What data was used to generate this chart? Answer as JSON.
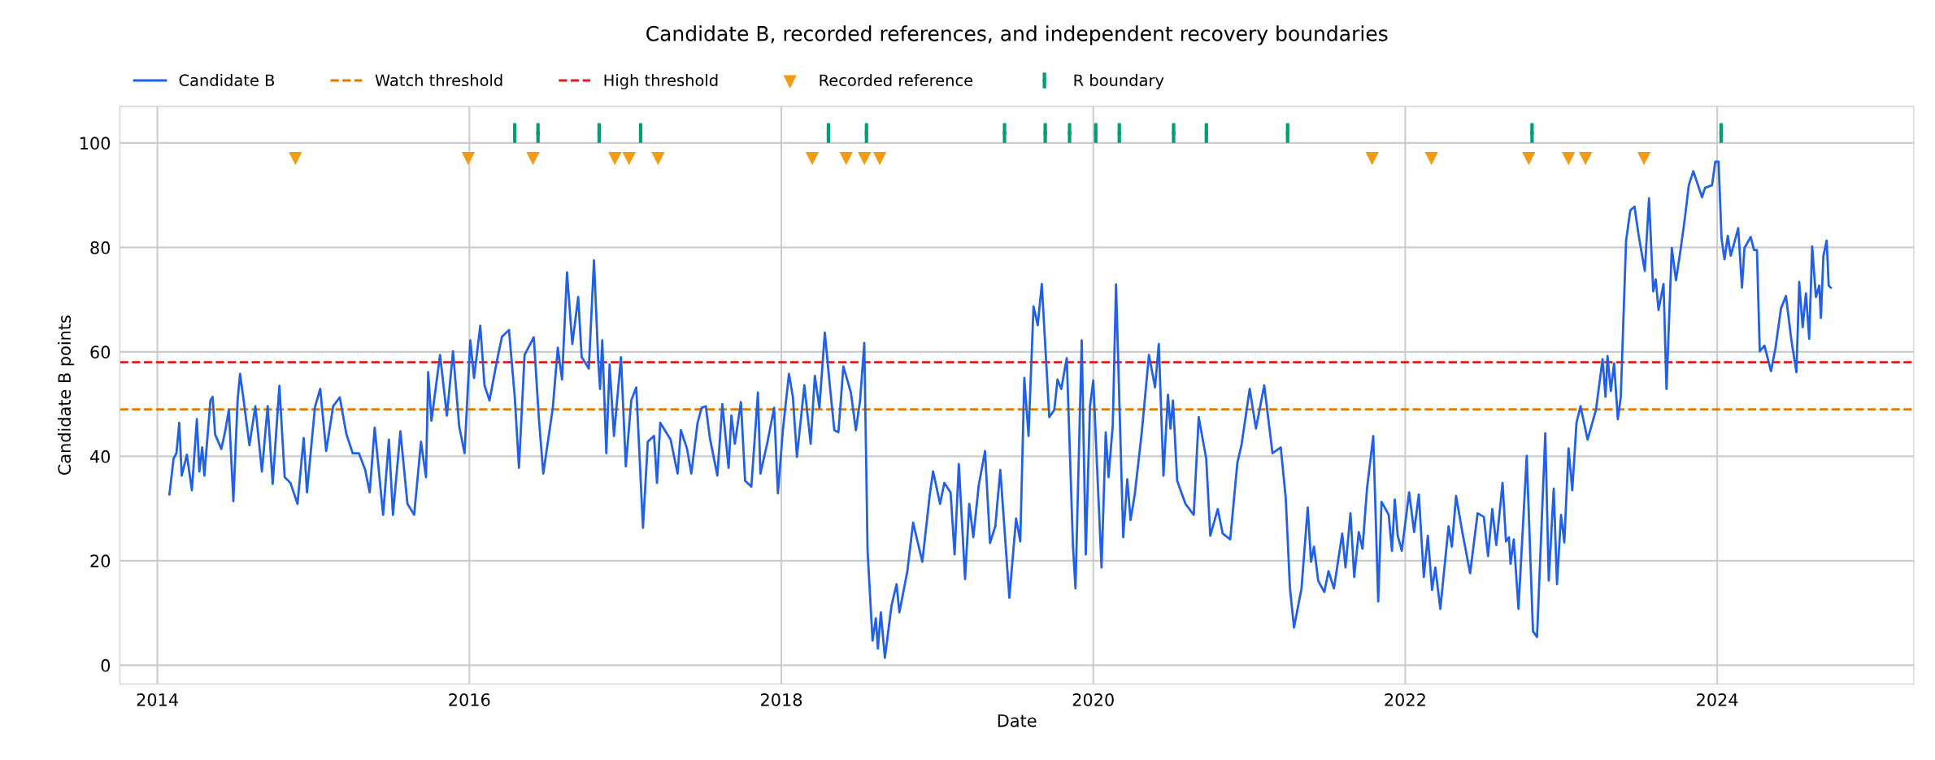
{
  "chart_data": {
    "type": "line",
    "title": "Candidate B, recorded references, and independent recovery boundaries",
    "xlabel": "Date",
    "ylabel": "Candidate B points",
    "xlim": [
      2013.76,
      2025.26
    ],
    "xticks": [
      2014,
      2016,
      2018,
      2020,
      2022,
      2024
    ],
    "ylim": [
      -3.6,
      107
    ],
    "yticks": [
      0,
      20,
      40,
      60,
      80,
      100
    ],
    "grid": true,
    "legend": "top",
    "ref_lines": [
      {
        "axis": "y",
        "value": 49,
        "label": "Watch threshold",
        "color": "#e07b00",
        "line_style": "dashed"
      },
      {
        "axis": "y",
        "value": 58,
        "label": "High threshold",
        "color": "#e31a1c",
        "line_style": "dashed"
      }
    ],
    "series": [
      {
        "name": "Candidate B",
        "color": "#2160e8",
        "marker": "none",
        "line_style": "solid",
        "x": [
          2014.077,
          2014.088,
          2014.104,
          2014.122,
          2014.14,
          2014.156,
          2014.189,
          2014.221,
          2014.253,
          2014.269,
          2014.287,
          2014.301,
          2014.34,
          2014.354,
          2014.37,
          2014.41,
          2014.436,
          2014.458,
          2014.487,
          2014.514,
          2014.53,
          2014.553,
          2014.59,
          2014.628,
          2014.67,
          2014.707,
          2014.739,
          2014.782,
          2014.816,
          2014.853,
          2014.898,
          2014.938,
          2014.959,
          2015.01,
          2015.044,
          2015.082,
          2015.127,
          2015.169,
          2015.212,
          2015.252,
          2015.292,
          2015.332,
          2015.361,
          2015.393,
          2015.447,
          2015.484,
          2015.51,
          2015.558,
          2015.603,
          2015.646,
          2015.69,
          2015.722,
          2015.736,
          2015.757,
          2015.812,
          2015.856,
          2015.895,
          2015.935,
          2015.969,
          2016.006,
          2016.03,
          2016.07,
          2016.097,
          2016.129,
          2016.179,
          2016.209,
          2016.254,
          2016.291,
          2016.318,
          2016.354,
          2016.413,
          2016.446,
          2016.474,
          2016.535,
          2016.567,
          2016.594,
          2016.626,
          2016.66,
          2016.698,
          2016.72,
          2016.766,
          2016.799,
          2016.827,
          2016.838,
          2016.852,
          2016.878,
          2016.899,
          2016.927,
          2016.972,
          2017.003,
          2017.038,
          2017.07,
          2017.113,
          2017.144,
          2017.184,
          2017.203,
          2017.224,
          2017.29,
          2017.335,
          2017.356,
          2017.396,
          2017.423,
          2017.463,
          2017.489,
          2017.516,
          2017.542,
          2017.59,
          2017.622,
          2017.662,
          2017.68,
          2017.702,
          2017.741,
          2017.768,
          2017.808,
          2017.85,
          2017.866,
          2017.909,
          2017.954,
          2017.978,
          2018.01,
          2018.049,
          2018.074,
          2018.1,
          2018.148,
          2018.188,
          2018.215,
          2018.244,
          2018.279,
          2018.313,
          2018.34,
          2018.366,
          2018.398,
          2018.446,
          2018.478,
          2018.505,
          2018.532,
          2018.553,
          2018.585,
          2018.606,
          2018.619,
          2018.638,
          2018.664,
          2018.707,
          2018.739,
          2018.757,
          2018.808,
          2018.845,
          2018.904,
          2018.952,
          2018.973,
          2019.018,
          2019.045,
          2019.085,
          2019.111,
          2019.138,
          2019.178,
          2019.205,
          2019.231,
          2019.266,
          2019.306,
          2019.338,
          2019.372,
          2019.404,
          2019.462,
          2019.505,
          2019.532,
          2019.558,
          2019.585,
          2019.617,
          2019.644,
          2019.67,
          2019.718,
          2019.75,
          2019.771,
          2019.795,
          2019.83,
          2019.87,
          2019.886,
          2019.926,
          2019.952,
          2019.979,
          2020.0,
          2020.053,
          2020.08,
          2020.098,
          2020.125,
          2020.146,
          2020.192,
          2020.218,
          2020.239,
          2020.266,
          2020.311,
          2020.357,
          2020.396,
          2020.42,
          2020.45,
          2020.479,
          2020.495,
          2020.511,
          2020.538,
          2020.591,
          2020.644,
          2020.676,
          2020.724,
          2020.75,
          2020.798,
          2020.83,
          2020.878,
          2020.924,
          2020.95,
          2021.003,
          2021.043,
          2021.096,
          2021.149,
          2021.202,
          2021.234,
          2021.261,
          2021.287,
          2021.335,
          2021.375,
          2021.396,
          2021.415,
          2021.442,
          2021.481,
          2021.508,
          2021.543,
          2021.596,
          2021.617,
          2021.649,
          2021.673,
          2021.702,
          2021.726,
          2021.755,
          2021.795,
          2021.827,
          2021.848,
          2021.894,
          2021.915,
          2021.933,
          2021.952,
          2021.978,
          2022.025,
          2022.057,
          2022.087,
          2022.119,
          2022.145,
          2022.172,
          2022.193,
          2022.225,
          2022.278,
          2022.299,
          2022.326,
          2022.366,
          2022.416,
          2022.464,
          2022.504,
          2022.531,
          2022.558,
          2022.584,
          2022.624,
          2022.646,
          2022.665,
          2022.675,
          2022.696,
          2022.726,
          2022.779,
          2022.819,
          2022.845,
          2022.898,
          2022.92,
          2022.952,
          2022.973,
          2022.999,
          2023.02,
          2023.047,
          2023.071,
          2023.098,
          2023.124,
          2023.169,
          2023.223,
          2023.265,
          2023.284,
          2023.297,
          2023.318,
          2023.339,
          2023.363,
          2023.382,
          2023.416,
          2023.443,
          2023.47,
          2023.496,
          2023.536,
          2023.563,
          2023.59,
          2023.606,
          2023.624,
          2023.656,
          2023.675,
          2023.709,
          2023.736,
          2023.765,
          2023.792,
          2023.818,
          2023.847,
          2023.903,
          2023.922,
          2023.967,
          2023.988,
          2024.009,
          2024.028,
          2024.047,
          2024.068,
          2024.087,
          2024.113,
          2024.135,
          2024.159,
          2024.175,
          2024.215,
          2024.236,
          2024.255,
          2024.273,
          2024.303,
          2024.345,
          2024.374,
          2024.409,
          2024.441,
          2024.476,
          2024.508,
          2024.526,
          2024.548,
          2024.569,
          2024.59,
          2024.609,
          2024.633,
          2024.654,
          2024.665,
          2024.681,
          2024.702,
          2024.715,
          2024.728
        ],
        "values": [
          32.7,
          35.5,
          39.6,
          40.6,
          46.4,
          36.3,
          40.3,
          33.5,
          47.1,
          37.1,
          41.7,
          36.3,
          50.7,
          51.4,
          44.2,
          41.4,
          45,
          48.9,
          31.4,
          50.7,
          55.8,
          50.7,
          42.1,
          49.6,
          37.1,
          49.6,
          34.7,
          53.5,
          36,
          34.9,
          30.9,
          43.5,
          33.1,
          49.4,
          52.9,
          41,
          49.6,
          51.3,
          44.2,
          40.6,
          40.6,
          37.4,
          33.1,
          45.5,
          28.8,
          43.2,
          28.8,
          44.8,
          30.9,
          28.8,
          42.8,
          36,
          56.1,
          46.8,
          59.4,
          47.8,
          60.1,
          45.7,
          40.6,
          62.2,
          55,
          65,
          53.6,
          50.7,
          58.6,
          62.9,
          64.2,
          51.4,
          37.8,
          59.4,
          62.8,
          47.1,
          36.7,
          49.3,
          60.8,
          54.7,
          75.2,
          61.5,
          70.5,
          59,
          56.8,
          77.5,
          57.9,
          52.9,
          62.2,
          40.6,
          57.6,
          43.9,
          59,
          38.1,
          50.7,
          53.2,
          26.3,
          42.8,
          43.9,
          34.9,
          46.4,
          43.2,
          36.7,
          45,
          41.4,
          36.7,
          46.4,
          49.3,
          49.6,
          43.5,
          36.3,
          50,
          37.8,
          47.8,
          42.4,
          50.4,
          35.3,
          34.2,
          52.2,
          36.7,
          42.4,
          49.3,
          32.9,
          45,
          55.8,
          51.4,
          39.9,
          53.6,
          42.4,
          55.4,
          49.3,
          63.7,
          52.9,
          45,
          44.6,
          57.2,
          52.2,
          45,
          50.7,
          61.7,
          21.9,
          4.7,
          9,
          3.2,
          10.1,
          1.4,
          11.5,
          15.5,
          10.1,
          18,
          27.3,
          19.8,
          32.7,
          37.1,
          30.9,
          34.9,
          33.1,
          21.2,
          38.5,
          16.5,
          30.9,
          24.5,
          34.5,
          41,
          23.4,
          26.6,
          37.4,
          12.9,
          28.1,
          23.7,
          55,
          43.9,
          68.7,
          65.1,
          73,
          47.5,
          48.9,
          54.7,
          52.9,
          58.8,
          22.7,
          14.7,
          62.2,
          21.2,
          49.6,
          54.5,
          18.7,
          44.6,
          36,
          46,
          72.9,
          24.5,
          35.6,
          27.8,
          32.7,
          44.6,
          59.4,
          53.2,
          61.5,
          36.3,
          51.8,
          45.3,
          50.7,
          35.3,
          30.9,
          28.8,
          47.5,
          39.6,
          24.8,
          29.9,
          25.2,
          24.1,
          38.8,
          42.1,
          52.9,
          45.3,
          53.6,
          40.6,
          41.7,
          32,
          14.7,
          7.2,
          14.7,
          30.2,
          19.8,
          22.7,
          16.2,
          14,
          18,
          14.7,
          25.2,
          18.7,
          29.1,
          16.9,
          25.5,
          22.3,
          33.8,
          43.9,
          12.2,
          31.3,
          28.8,
          21.9,
          31.7,
          24.8,
          21.9,
          33.1,
          25.5,
          32.7,
          16.9,
          24.8,
          14.4,
          18.7,
          10.8,
          26.6,
          22.7,
          32.4,
          25.5,
          17.6,
          29.1,
          28.4,
          20.9,
          29.9,
          23,
          34.9,
          23.7,
          24.5,
          19.4,
          24.1,
          10.8,
          40.1,
          6.5,
          5.4,
          44.4,
          16.2,
          33.8,
          15.5,
          28.8,
          23.5,
          41.5,
          33.5,
          46.4,
          49.6,
          43.2,
          48.9,
          58.6,
          51.4,
          59.2,
          52.5,
          57.8,
          47.1,
          51.4,
          81.3,
          87.1,
          87.8,
          82.4,
          75.5,
          89.4,
          71.6,
          73.9,
          68,
          73,
          52.9,
          79.9,
          73.7,
          79.5,
          85.4,
          91.9,
          94.6,
          89.6,
          91.4,
          91.9,
          96.4,
          96.4,
          81.7,
          77.7,
          82.2,
          78.4,
          81.3,
          83.7,
          72.3,
          79.9,
          82,
          79.5,
          79.5,
          60.1,
          61.2,
          56.3,
          60.8,
          68.3,
          70.7,
          62.2,
          56.1,
          73.4,
          64.7,
          71.2,
          62.5,
          80.2,
          70.5,
          72.7,
          66.5,
          78.4,
          81.3,
          72.7,
          72.3
        ]
      },
      {
        "name": "Recorded reference",
        "type": "scatter",
        "color": "#f39c12",
        "marker": "triangle",
        "x": [
          2014.885,
          2015.993,
          2016.408,
          2016.933,
          2017.024,
          2017.21,
          2018.198,
          2018.416,
          2018.533,
          2018.631,
          2021.788,
          2022.168,
          2022.792,
          2023.047,
          2023.156,
          2023.531
        ],
        "values": [
          97,
          97,
          97,
          97,
          97,
          97,
          97,
          97,
          97,
          97,
          97,
          97,
          97,
          97,
          97,
          97
        ]
      },
      {
        "name": "R boundary",
        "type": "scatter",
        "color": "#009e73",
        "marker": "square",
        "errors": [
          1.9,
          1.9,
          1.9,
          1.9,
          1.9,
          1.9,
          1.9,
          1.9,
          1.9,
          1.9,
          1.9,
          1.9,
          1.9,
          1.9,
          1.9,
          1.9
        ],
        "x": [
          2016.291,
          2016.44,
          2016.832,
          2017.098,
          2018.302,
          2018.546,
          2019.431,
          2019.692,
          2019.848,
          2020.016,
          2020.167,
          2020.515,
          2020.725,
          2021.246,
          2022.813,
          2024.025
        ],
        "values": [
          101.9,
          101.9,
          101.9,
          101.9,
          101.9,
          101.9,
          101.9,
          101.9,
          101.9,
          101.9,
          101.9,
          101.9,
          101.9,
          101.9,
          101.9,
          101.9
        ]
      }
    ]
  }
}
